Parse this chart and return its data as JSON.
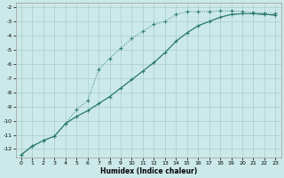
{
  "xlabel": "Humidex (Indice chaleur)",
  "bg_color": "#cce9e9",
  "grid_color": "#aacccc",
  "line_color": "#2e7d6e",
  "xlim": [
    -0.5,
    23.5
  ],
  "ylim": [
    -12.6,
    -1.7
  ],
  "xticks": [
    0,
    1,
    2,
    3,
    4,
    5,
    6,
    7,
    8,
    9,
    10,
    11,
    12,
    13,
    14,
    15,
    16,
    17,
    18,
    19,
    20,
    21,
    22,
    23
  ],
  "yticks": [
    -12,
    -11,
    -10,
    -9,
    -8,
    -7,
    -6,
    -5,
    -4,
    -3,
    -2
  ],
  "line1_x": [
    0,
    1,
    2,
    3,
    4,
    5,
    6,
    7,
    8,
    9,
    10,
    11,
    12,
    13,
    14,
    15,
    16,
    17,
    18,
    19,
    20,
    21,
    22,
    23
  ],
  "line1_y": [
    -12.4,
    -11.8,
    -11.4,
    -11.1,
    -10.2,
    -9.2,
    -8.6,
    -6.4,
    -5.6,
    -4.9,
    -4.2,
    -3.7,
    -3.2,
    -3.0,
    -2.5,
    -2.3,
    -2.3,
    -2.3,
    -2.25,
    -2.25,
    -2.3,
    -2.35,
    -2.4,
    -2.45
  ],
  "line2_x": [
    0,
    1,
    2,
    3,
    4,
    5,
    6,
    7,
    8,
    9,
    10,
    11,
    12,
    13,
    14,
    15,
    16,
    17,
    18,
    19,
    20,
    21,
    22,
    23
  ],
  "line2_y": [
    -12.4,
    -11.8,
    -11.4,
    -11.1,
    -10.2,
    -9.7,
    -9.3,
    -8.8,
    -8.3,
    -7.7,
    -7.1,
    -6.5,
    -5.9,
    -5.2,
    -4.4,
    -3.8,
    -3.3,
    -3.0,
    -2.7,
    -2.5,
    -2.45,
    -2.45,
    -2.5,
    -2.55
  ],
  "line3_x": [
    0,
    1,
    2,
    3,
    4,
    5,
    6,
    7,
    8,
    9,
    10,
    11,
    12,
    13,
    14,
    15,
    16,
    17,
    18,
    19,
    20,
    21,
    22,
    23
  ],
  "line3_y": [
    -12.4,
    -11.8,
    -11.4,
    -11.1,
    -10.2,
    -9.7,
    -9.3,
    -8.8,
    -8.3,
    -7.7,
    -7.1,
    -6.5,
    -5.9,
    -5.2,
    -4.4,
    -3.8,
    -3.3,
    -3.0,
    -2.7,
    -2.5,
    -2.45,
    -2.45,
    -2.5,
    -2.55
  ]
}
